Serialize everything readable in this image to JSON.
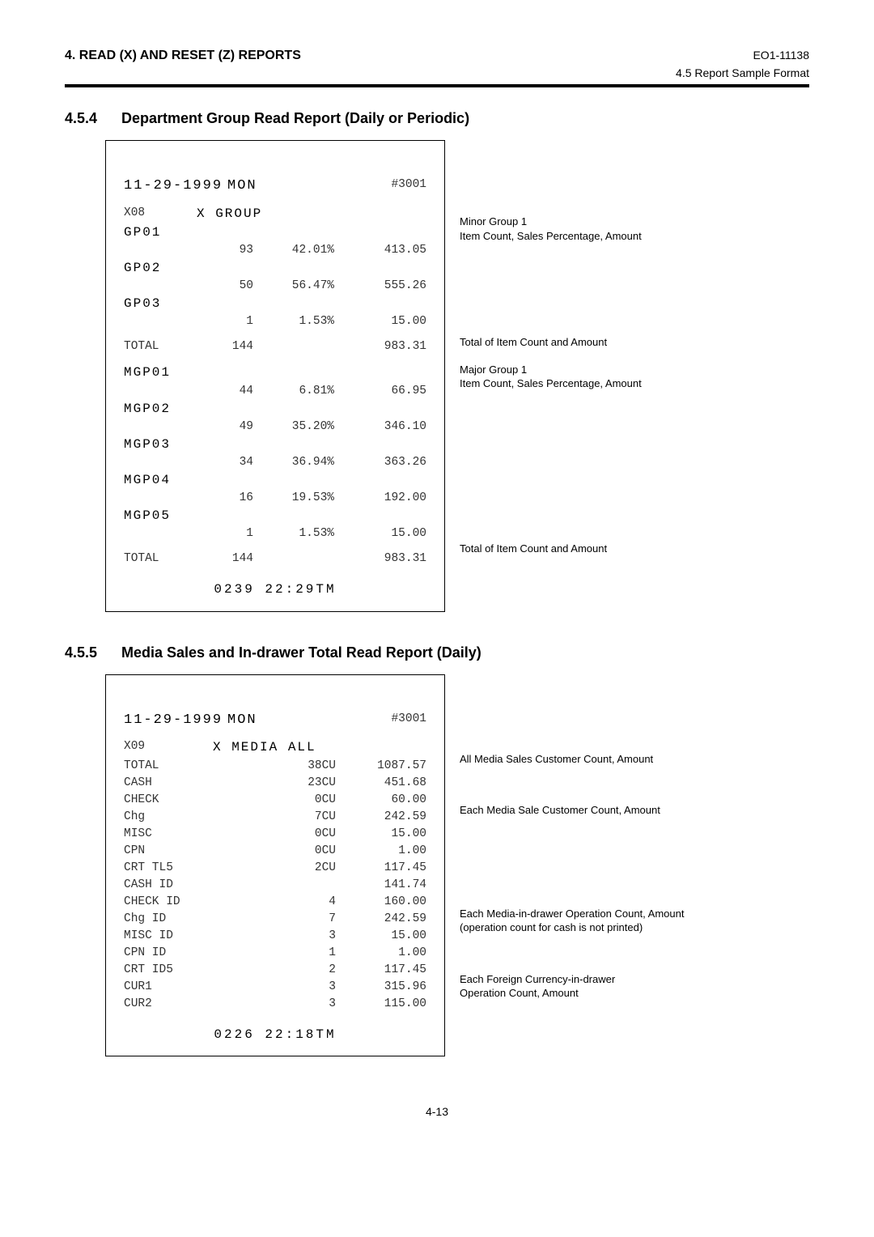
{
  "header": {
    "left": "4.   READ (X) AND RESET (Z) REPORTS",
    "right_code": "EO1-11138",
    "right_sub": "4.5  Report Sample Format"
  },
  "sec1": {
    "num": "4.5.4",
    "title": "Department Group Read Report (Daily or Periodic)",
    "receipt": {
      "dateline_date": "11-29-1999",
      "dateline_dow": "MON",
      "dateline_id": "#3001",
      "xline_code": "X08",
      "xline_title": "X  GROUP",
      "minor": [
        {
          "name": "GP01",
          "cnt": "93",
          "pct": "42.01%",
          "amt": "413.05"
        },
        {
          "name": "GP02",
          "cnt": "50",
          "pct": "56.47%",
          "amt": "555.26"
        },
        {
          "name": "GP03",
          "cnt": "1",
          "pct": "1.53%",
          "amt": "15.00"
        }
      ],
      "minor_total": {
        "label": "TOTAL",
        "cnt": "144",
        "amt": "983.31"
      },
      "major": [
        {
          "name": "MGP01",
          "cnt": "44",
          "pct": "6.81%",
          "amt": "66.95"
        },
        {
          "name": "MGP02",
          "cnt": "49",
          "pct": "35.20%",
          "amt": "346.10"
        },
        {
          "name": "MGP03",
          "cnt": "34",
          "pct": "36.94%",
          "amt": "363.26"
        },
        {
          "name": "MGP04",
          "cnt": "16",
          "pct": "19.53%",
          "amt": "192.00"
        },
        {
          "name": "MGP05",
          "cnt": "1",
          "pct": "1.53%",
          "amt": "15.00"
        }
      ],
      "major_total": {
        "label": "TOTAL",
        "cnt": "144",
        "amt": "983.31"
      },
      "footer": "0239  22:29TM"
    },
    "annot": {
      "a1a": "Minor Group 1",
      "a1b": "Item Count, Sales Percentage, Amount",
      "a2": "Total of Item Count and Amount",
      "a3a": "Major Group 1",
      "a3b": "Item Count, Sales Percentage, Amount",
      "a4": "Total of Item Count and Amount"
    }
  },
  "sec2": {
    "num": "4.5.5",
    "title": "Media Sales and In-drawer Total Read Report (Daily)",
    "receipt": {
      "dateline_date": "11-29-1999",
      "dateline_dow": "MON",
      "dateline_id": "#3001",
      "xline_code": "X09",
      "xline_title": "X  MEDIA  ALL",
      "rows": [
        {
          "a": "TOTAL",
          "b": "38CU",
          "c": "1087.57"
        },
        {
          "a": "CASH",
          "b": "23CU",
          "c": "451.68"
        },
        {
          "a": "CHECK",
          "b": "0CU",
          "c": "60.00"
        },
        {
          "a": "Chg",
          "b": "7CU",
          "c": "242.59"
        },
        {
          "a": "MISC",
          "b": "0CU",
          "c": "15.00"
        },
        {
          "a": "CPN",
          "b": "0CU",
          "c": "1.00"
        },
        {
          "a": "CRT TL5",
          "b": "2CU",
          "c": "117.45"
        },
        {
          "a": "CASH ID",
          "b": "",
          "c": "141.74"
        },
        {
          "a": "CHECK ID",
          "b": "4",
          "c": "160.00"
        },
        {
          "a": "Chg ID",
          "b": "7",
          "c": "242.59"
        },
        {
          "a": "MISC ID",
          "b": "3",
          "c": "15.00"
        },
        {
          "a": "CPN ID",
          "b": "1",
          "c": "1.00"
        },
        {
          "a": "CRT ID5",
          "b": "2",
          "c": "117.45"
        },
        {
          "a": "CUR1",
          "b": "3",
          "c": "315.96"
        },
        {
          "a": "CUR2",
          "b": "3",
          "c": "115.00"
        }
      ],
      "footer": "0226  22:18TM"
    },
    "annot": {
      "b1": "All Media Sales Customer Count, Amount",
      "b2": "Each Media Sale Customer Count, Amount",
      "b3a": "Each Media-in-drawer Operation Count, Amount",
      "b3b": "(operation count for cash is not printed)",
      "b4a": "Each Foreign Currency-in-drawer",
      "b4b": "Operation Count, Amount"
    }
  },
  "page_num": "4-13"
}
